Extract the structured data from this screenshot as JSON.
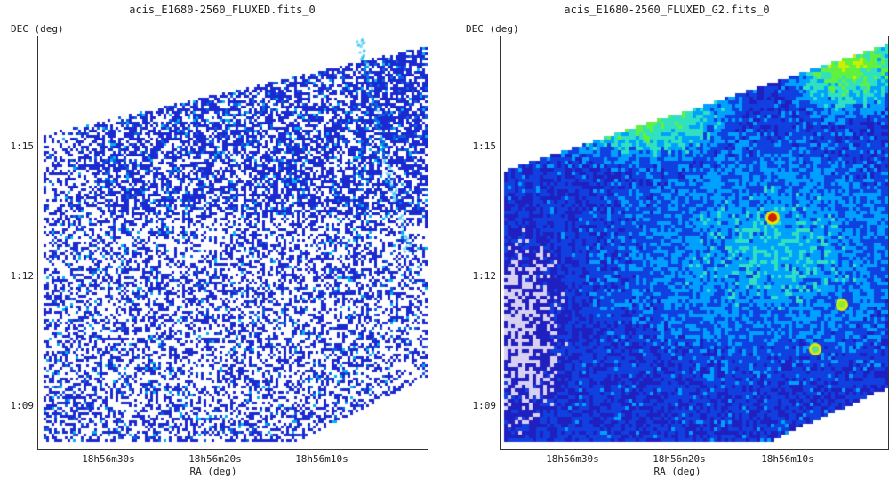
{
  "panels": [
    {
      "title": "acis_E1680-2560_FLUXED.fits_0",
      "ylabel": "DEC (deg)",
      "xlabel": "RA (deg)",
      "yticks": [
        "1:15",
        "1:12",
        "1:09"
      ],
      "xticks": [
        "18h56m30s",
        "18h56m20s",
        "18h56m10s"
      ],
      "style": "binned-counts"
    },
    {
      "title": "acis_E1680-2560_FLUXED_G2.fits_0",
      "ylabel": "DEC (deg)",
      "xlabel": "RA (deg)",
      "yticks": [
        "1:15",
        "1:12",
        "1:09"
      ],
      "xticks": [
        "18h56m30s",
        "18h56m20s",
        "18h56m10s"
      ],
      "style": "smoothed-heatmap"
    }
  ],
  "colors": {
    "low": "#1010c0",
    "mid_low": "#00a0ff",
    "mid": "#30e0c0",
    "mid_high": "#60f040",
    "high": "#e8e800",
    "peak": "#d02000",
    "background": "#ffffff",
    "frame": "#333333"
  }
}
